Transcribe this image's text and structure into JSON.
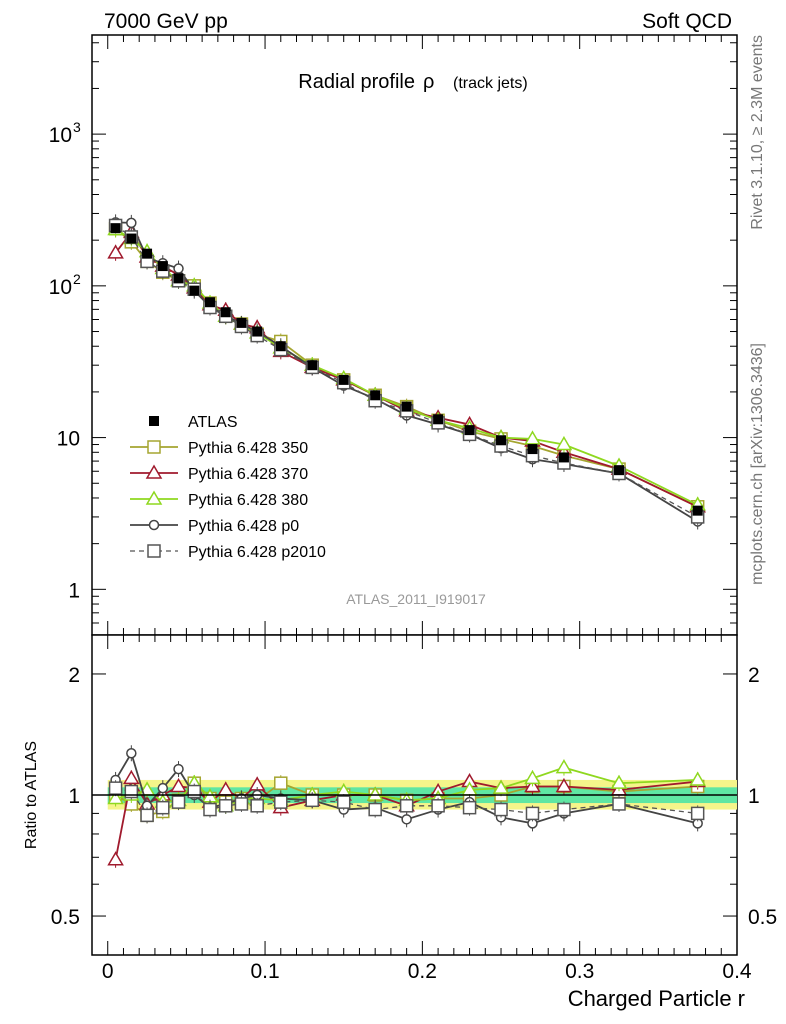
{
  "header": {
    "left_label": "7000 GeV pp",
    "right_label": "Soft QCD"
  },
  "side": {
    "rivet_label": "Rivet 3.1.10, ≥ 2.3M events",
    "source_label": "mcplots.cern.ch [arXiv:1306.3436]"
  },
  "chart_data": [
    {
      "type": "line",
      "panel": "main",
      "title_main": "Radial profile",
      "title_symbol": "ρ",
      "title_suffix": "(track jets)",
      "analysis_id": "ATLAS_2011_I919017",
      "xlim": [
        -0.01,
        0.4
      ],
      "ylim": [
        0.5,
        4500
      ],
      "log_y": true,
      "x_ticks": [
        0,
        0.1,
        0.2,
        0.3,
        0.4
      ],
      "y_tick_labels": [
        {
          "value": 1,
          "label": "1"
        },
        {
          "value": 10,
          "label": "10"
        },
        {
          "value": 100,
          "label": "10",
          "exponent": "2"
        },
        {
          "value": 1000,
          "label": "10",
          "exponent": "3"
        }
      ],
      "x": [
        0.005,
        0.015,
        0.025,
        0.035,
        0.045,
        0.055,
        0.065,
        0.075,
        0.085,
        0.095,
        0.11,
        0.13,
        0.15,
        0.17,
        0.19,
        0.21,
        0.23,
        0.25,
        0.27,
        0.29,
        0.325,
        0.375
      ],
      "data": {
        "name": "ATLAS",
        "values": [
          240,
          205,
          163,
          135,
          112,
          93,
          78,
          67,
          57,
          50,
          40,
          30,
          24,
          19,
          16,
          13.2,
          11.2,
          9.6,
          8.4,
          7.4,
          6.1,
          3.3
        ],
        "color": "#000000"
      },
      "series": [
        {
          "name": "Pythia 6.428 350",
          "color": "#a5a530",
          "marker": "square-open",
          "dash": "solid",
          "values": [
            238,
            195,
            145,
            123,
            108,
            100,
            77,
            63,
            56,
            48,
            43,
            30,
            24,
            19,
            16,
            13,
            11,
            9.8,
            8.8,
            7.6,
            6.2,
            3.5
          ]
        },
        {
          "name": "Pythia 6.428 370",
          "color": "#a01a2d",
          "marker": "triangle-open",
          "dash": "solid",
          "values": [
            165,
            225,
            155,
            135,
            118,
            97,
            75,
            69,
            56,
            53,
            37,
            29,
            24,
            19,
            15,
            13.5,
            12.2,
            10,
            9.5,
            8,
            6.2,
            3.5
          ]
        },
        {
          "name": "Pythia 6.428 380",
          "color": "#8fd81f",
          "marker": "triangle-open",
          "dash": "solid",
          "values": [
            235,
            205,
            168,
            130,
            108,
            100,
            77,
            63,
            56,
            49,
            39,
            30,
            24.5,
            19,
            15.5,
            13,
            11.5,
            10,
            9.8,
            9,
            6.5,
            3.6
          ]
        },
        {
          "name": "Pythia 6.428 p0",
          "color": "#444444",
          "marker": "circle-open",
          "dash": "solid",
          "values": [
            262,
            260,
            153,
            141,
            130,
            93,
            73,
            64,
            56,
            50,
            40,
            29,
            22,
            18,
            14,
            12.2,
            10.5,
            8.5,
            7.2,
            6.7,
            5.8,
            2.8
          ]
        },
        {
          "name": "Pythia 6.428 p2010",
          "color": "#555555",
          "marker": "square-open",
          "dash": "dashed",
          "values": [
            250,
            210,
            145,
            125,
            108,
            95,
            72,
            63,
            54,
            47,
            38,
            29,
            23,
            17.5,
            15,
            12.5,
            10.5,
            8.8,
            7.6,
            6.8,
            5.8,
            3.0
          ]
        }
      ]
    },
    {
      "type": "line",
      "panel": "ratio",
      "ylabel": "Ratio to ATLAS",
      "xlabel": "Charged Particle r",
      "xlim": [
        -0.01,
        0.4
      ],
      "ylim": [
        0.4,
        2.5
      ],
      "log_y": true,
      "y_ticks": [
        0.5,
        1,
        2
      ],
      "y_tick_labels": [
        "0.5",
        "1",
        "2"
      ],
      "x": [
        0.005,
        0.015,
        0.025,
        0.035,
        0.045,
        0.055,
        0.065,
        0.075,
        0.085,
        0.095,
        0.11,
        0.13,
        0.15,
        0.17,
        0.19,
        0.21,
        0.23,
        0.25,
        0.27,
        0.29,
        0.325,
        0.375
      ],
      "band_color_inner": "#5fe6a3",
      "band_color_outer": "#f5f58a",
      "series": [
        {
          "name": "Pythia 6.428 350",
          "color": "#a5a530",
          "marker": "square-open",
          "dash": "solid",
          "values": [
            1.0,
            0.95,
            0.89,
            0.91,
            0.97,
            1.07,
            0.98,
            0.96,
            0.98,
            0.97,
            1.07,
            1.0,
            1.0,
            1.0,
            0.97,
            0.98,
            0.98,
            1.0,
            1.05,
            1.05,
            1.02,
            1.05
          ]
        },
        {
          "name": "Pythia 6.428 370",
          "color": "#a01a2d",
          "marker": "triangle-open",
          "dash": "solid",
          "values": [
            0.69,
            1.1,
            0.95,
            1.0,
            1.05,
            1.04,
            0.96,
            1.03,
            0.98,
            1.06,
            0.93,
            0.97,
            1.0,
            1.0,
            0.94,
            1.02,
            1.08,
            1.04,
            1.05,
            1.05,
            1.03,
            1.08
          ]
        },
        {
          "name": "Pythia 6.428 380",
          "color": "#8fd81f",
          "marker": "triangle-open",
          "dash": "solid",
          "values": [
            0.98,
            1.0,
            1.03,
            0.96,
            0.97,
            1.07,
            0.99,
            0.94,
            0.98,
            0.98,
            0.97,
            1.0,
            1.02,
            1.0,
            0.97,
            0.98,
            1.03,
            1.04,
            1.1,
            1.17,
            1.07,
            1.09
          ]
        },
        {
          "name": "Pythia 6.428 p0",
          "color": "#444444",
          "marker": "circle-open",
          "dash": "solid",
          "values": [
            1.09,
            1.27,
            0.94,
            1.04,
            1.16,
            1.0,
            0.93,
            0.95,
            0.98,
            1.0,
            0.98,
            0.97,
            0.92,
            0.93,
            0.87,
            0.92,
            0.96,
            0.88,
            0.85,
            0.9,
            0.95,
            0.85
          ]
        },
        {
          "name": "Pythia 6.428 p2010",
          "color": "#555555",
          "marker": "square-open",
          "dash": "dashed",
          "values": [
            1.04,
            1.02,
            0.89,
            0.93,
            0.96,
            1.02,
            0.92,
            0.94,
            0.95,
            0.94,
            0.96,
            0.97,
            0.96,
            0.92,
            0.94,
            0.94,
            0.93,
            0.92,
            0.9,
            0.92,
            0.95,
            0.9
          ]
        }
      ]
    }
  ]
}
